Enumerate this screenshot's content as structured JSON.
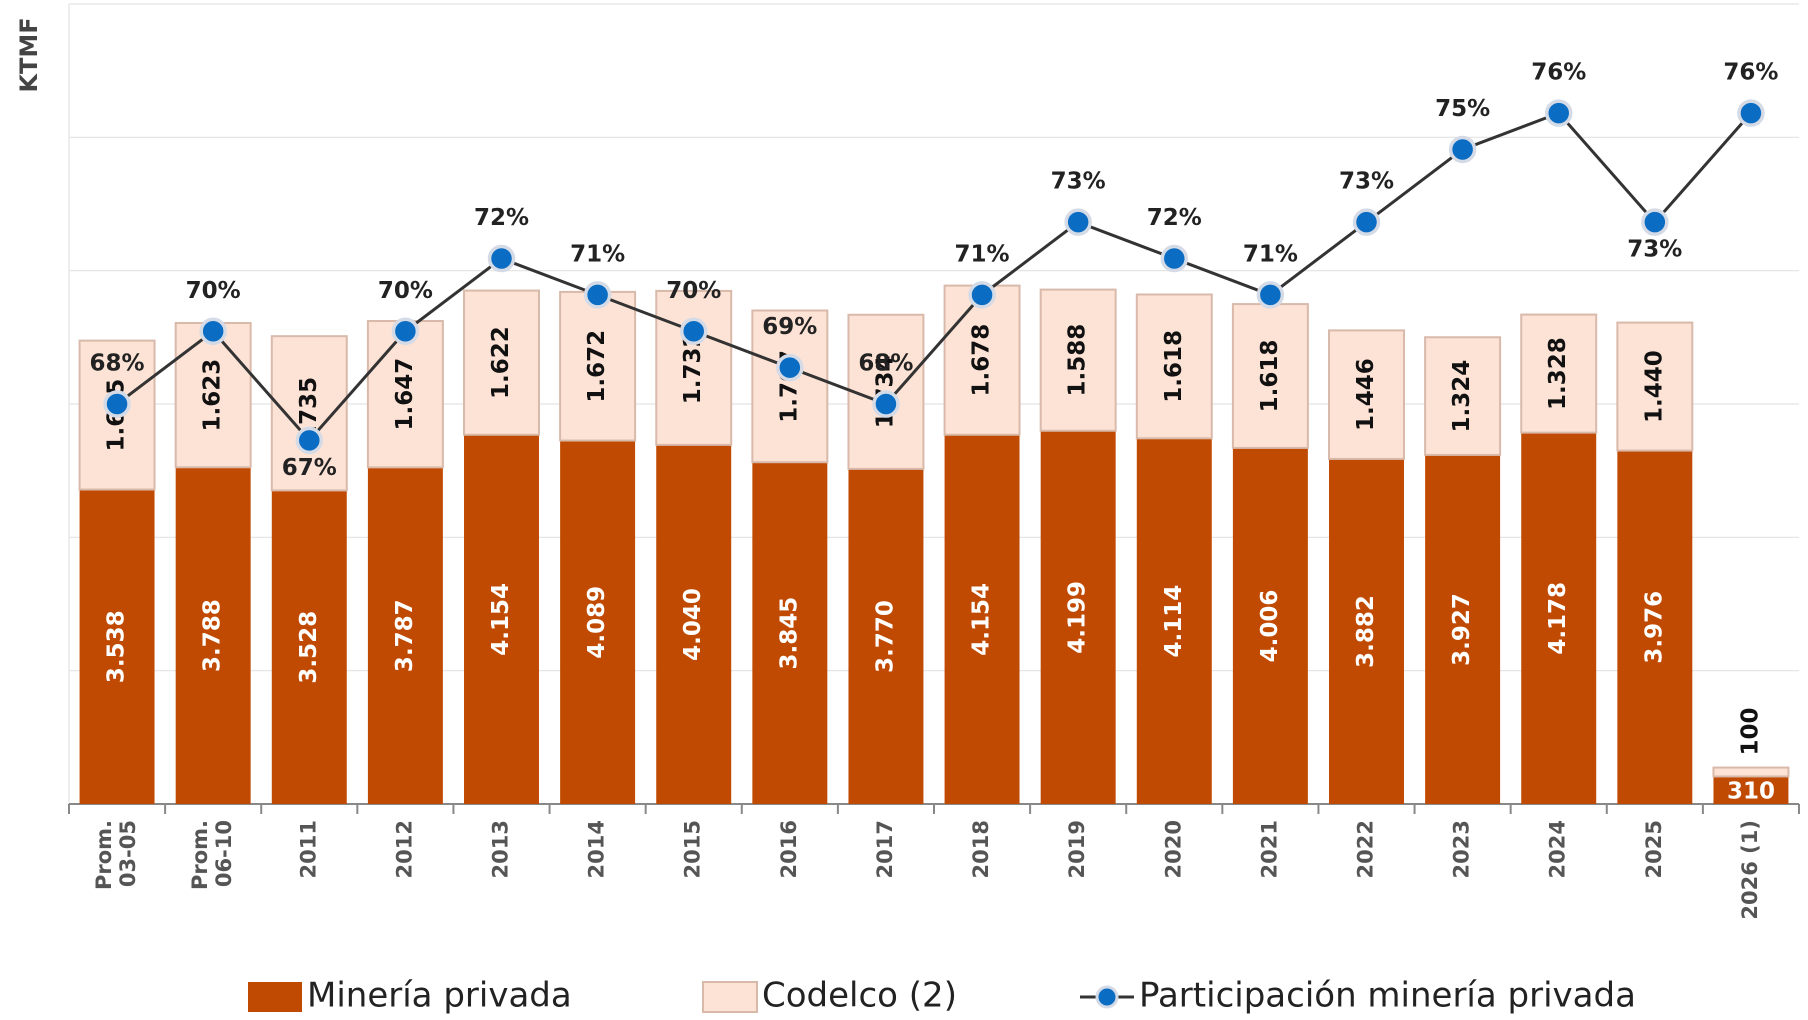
{
  "chart_data": {
    "type": "stacked_bar_line",
    "y_label": "KTMF",
    "categories": [
      "Prom. 03-05",
      "Prom. 06-10",
      "2011",
      "2012",
      "2013",
      "2014",
      "2015",
      "2016",
      "2017",
      "2018",
      "2019",
      "2020",
      "2021",
      "2022",
      "2023",
      "2024",
      "2025",
      "2026 (1)"
    ],
    "series": [
      {
        "name": "Minería privada",
        "color": "#c14a02",
        "values": [
          3538,
          3788,
          3528,
          3787,
          4154,
          4089,
          4040,
          3845,
          3770,
          4154,
          4199,
          4114,
          4006,
          3882,
          3927,
          4178,
          3976,
          310
        ],
        "value_labels": [
          "3.538",
          "3.788",
          "3.528",
          "3.787",
          "4.154",
          "4.089",
          "4.040",
          "3.845",
          "3.770",
          "4.154",
          "4.199",
          "4.114",
          "4.006",
          "3.882",
          "3.927",
          "4.178",
          "3.976",
          "310"
        ]
      },
      {
        "name": "Codelco (2)",
        "color": "#fde3d6",
        "values": [
          1675,
          1623,
          1735,
          1647,
          1622,
          1672,
          1732,
          1707,
          1734,
          1678,
          1588,
          1618,
          1618,
          1446,
          1324,
          1328,
          1440,
          100
        ],
        "value_labels": [
          "1.675",
          "1.623",
          "1.735",
          "1.647",
          "1.622",
          "1.672",
          "1.732",
          "1.707",
          "1.734",
          "1.678",
          "1.588",
          "1.618",
          "1.618",
          "1.446",
          "1.324",
          "1.328",
          "1.440",
          "100"
        ]
      },
      {
        "name": "Participación minería privada",
        "color": "#0a6cc2",
        "axis": "y2",
        "values": [
          68,
          70,
          67,
          70,
          72,
          71,
          70,
          69,
          68,
          71,
          73,
          72,
          71,
          73,
          75,
          76,
          73,
          76
        ],
        "value_labels": [
          "68%",
          "70%",
          "67%",
          "70%",
          "72%",
          "71%",
          "70%",
          "69%",
          "68%",
          "71%",
          "73%",
          "72%",
          "71%",
          "73%",
          "75%",
          "76%",
          "73%",
          "76%"
        ]
      }
    ],
    "ylim": [
      0,
      9000
    ],
    "yticks": [
      0,
      1500,
      3000,
      4500,
      6000,
      7500,
      9000
    ],
    "y2lim": [
      57,
      79
    ],
    "grid": true
  }
}
